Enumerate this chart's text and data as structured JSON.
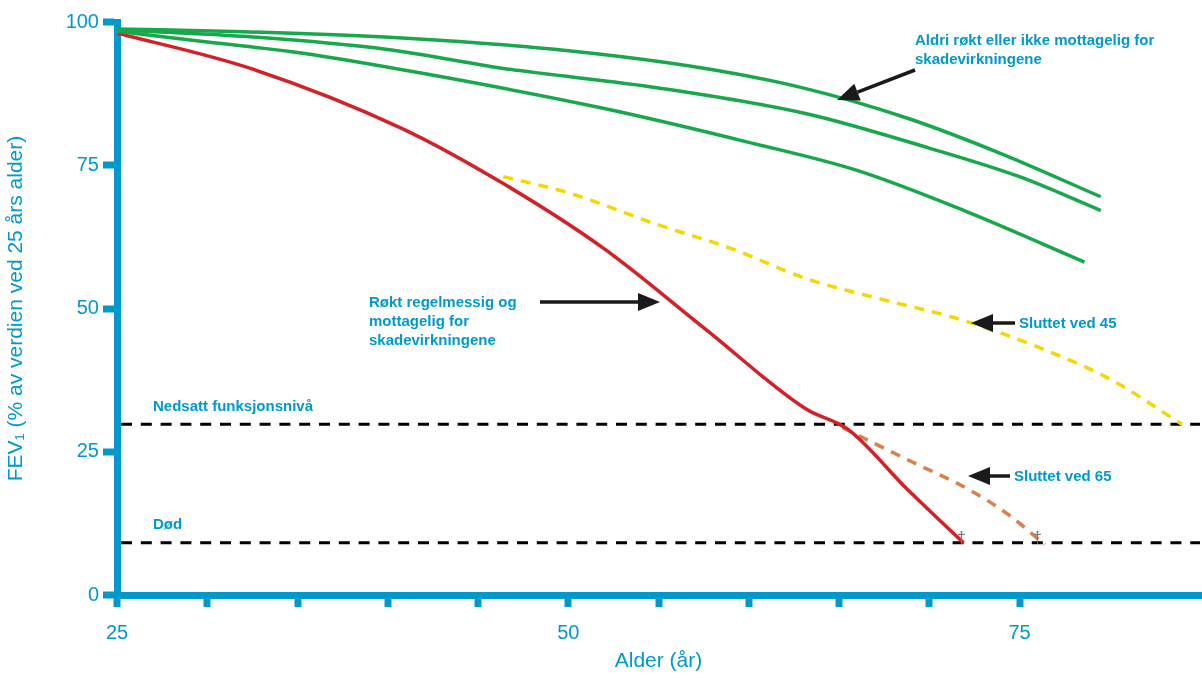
{
  "chart_data": {
    "type": "line",
    "xlabel": "Alder (år)",
    "ylabel": "FEV₁ (% av verdien ved 25 års alder)",
    "xlim": [
      25,
      85
    ],
    "ylim": [
      0,
      100
    ],
    "xticks": [
      25,
      {
        "value": 30,
        "label": null
      },
      {
        "value": 35,
        "label": null
      },
      {
        "value": 40,
        "label": null
      },
      {
        "value": 45,
        "label": null
      },
      50,
      {
        "value": 55,
        "label": null
      },
      {
        "value": 60,
        "label": null
      },
      {
        "value": 65,
        "label": null
      },
      {
        "value": 70,
        "label": null
      },
      75
    ],
    "yticks": [
      0,
      25,
      50,
      75,
      100
    ],
    "grid": false,
    "legend": false,
    "marker": "none",
    "series": [
      {
        "color": "#17a84b",
        "line_style": "solid",
        "x": [
          25,
          32,
          40.8,
          50,
          57.6,
          63,
          68.8,
          74,
          79.5
        ],
        "values": [
          98.8,
          98.3,
          97.2,
          95,
          91.9,
          88.5,
          83.2,
          77,
          69.5
        ]
      },
      {
        "color": "#17a84b",
        "line_style": "solid",
        "x": [
          25,
          32,
          40,
          46.4,
          55,
          63.2,
          70,
          75,
          79.5
        ],
        "values": [
          98.6,
          97.5,
          95.2,
          91.9,
          88.5,
          84,
          78,
          73,
          67.1
        ]
      },
      {
        "color": "#17a84b",
        "line_style": "solid",
        "x": [
          25,
          30,
          35.2,
          42,
          52,
          60,
          66,
          72,
          78.6
        ],
        "values": [
          98.4,
          96.5,
          94.6,
          91,
          84.9,
          79,
          74.1,
          67,
          58.1
        ]
      },
      {
        "color": "#d42027",
        "line_style": "solid",
        "x": [
          25,
          32.4,
          40.8,
          46.4,
          52,
          57.6,
          63.2,
          65.5,
          68.8,
          71.9
        ],
        "values": [
          98.1,
          91.9,
          81.4,
          71.8,
          60.4,
          46.4,
          32.4,
          28.9,
          18.4,
          9.1
        ]
      },
      {
        "color": "#f5d800",
        "line_style": "dashed",
        "x": [
          46.4,
          50,
          54.8,
          59,
          63.2,
          67.5,
          71.6,
          76,
          80,
          84
        ],
        "values": [
          73,
          70.2,
          64.8,
          60.5,
          55.2,
          51.5,
          48.2,
          43.3,
          37.7,
          29.8
        ]
      },
      {
        "color": "#d9804f",
        "line_style": "dashed",
        "x": [
          65.2,
          68.8,
          72.2,
          74.4,
          76.4
        ],
        "values": [
          29.2,
          23.6,
          18.4,
          14,
          8.8
        ]
      }
    ],
    "ref_lines": [
      {
        "axis": "y",
        "value": 29.8,
        "label": "Nedsatt funksjonsnivå",
        "color": "#000000",
        "line_style": "dashed"
      },
      {
        "axis": "y",
        "value": 9.1,
        "label": "Død",
        "color": "#000000",
        "line_style": "dashed"
      }
    ],
    "annotations": [
      "Aldri røkt eller ikke mottagelig for skadevirkningene",
      "Røkt regelmessig og mottagelig for skadevirkningene",
      "Sluttet ved 45",
      "Sluttet ved 65",
      "†",
      "†"
    ]
  }
}
